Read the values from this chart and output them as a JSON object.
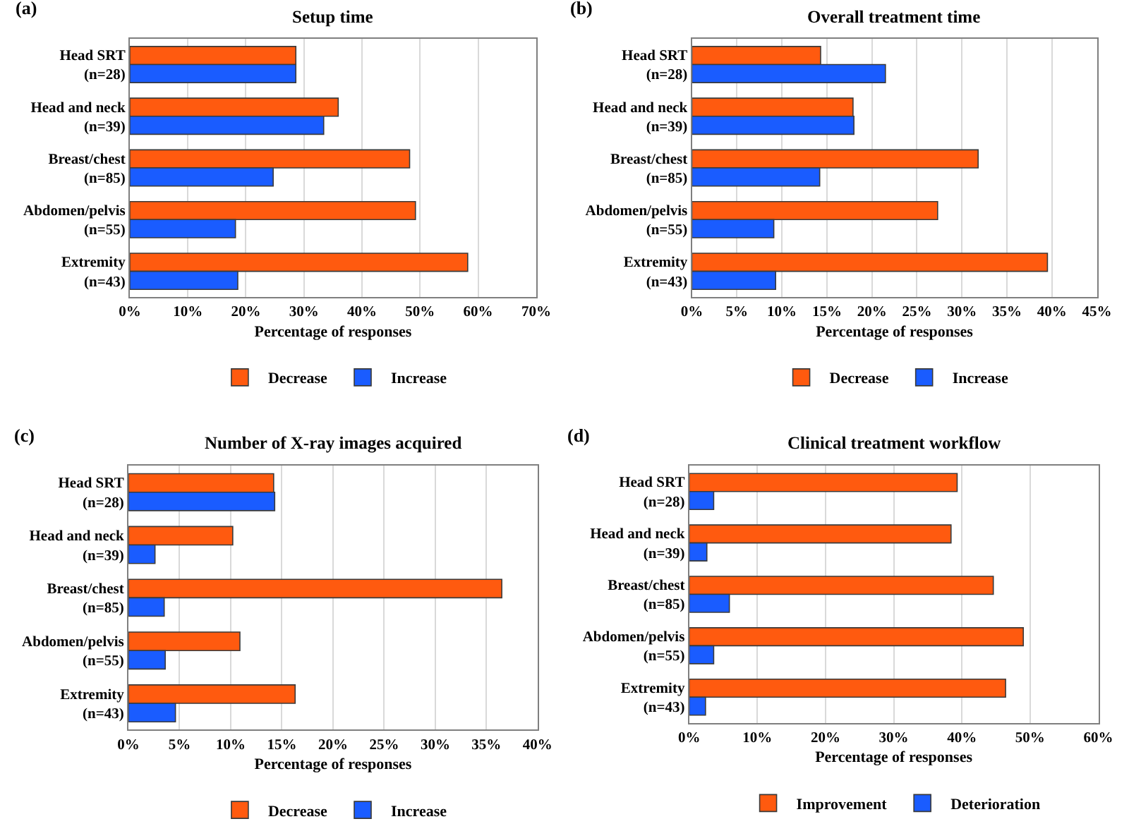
{
  "chart_data": [
    {
      "type": "bar",
      "orientation": "horizontal",
      "title": "Setup time",
      "annotations": [
        "(a)"
      ],
      "xlabel": "Percentage of responses",
      "categories": [
        "Head SRT\n(n=28)",
        "Head and neck\n(n=39)",
        "Breast/chest\n(n=85)",
        "Abdomen/pelvis\n(n=55)",
        "Extremity\n(n=43)"
      ],
      "series": [
        {
          "name": "Decrease",
          "color": "#ff5a0f",
          "values": [
            28.6,
            35.9,
            48.2,
            49.2,
            58.2
          ]
        },
        {
          "name": "Increase",
          "color": "#1a5cff",
          "values": [
            28.6,
            33.4,
            24.7,
            18.2,
            18.6
          ]
        }
      ],
      "xlim": [
        0,
        70
      ],
      "xticks": [
        {
          "value": 0,
          "label": "0%"
        },
        {
          "value": 10,
          "label": "10%"
        },
        {
          "value": 20,
          "label": "20%"
        },
        {
          "value": 30,
          "label": "30%"
        },
        {
          "value": 40,
          "label": "40%"
        },
        {
          "value": 50,
          "label": "50%"
        },
        {
          "value": 60,
          "label": "60%"
        },
        {
          "value": 70,
          "label": "70%"
        }
      ],
      "grid": "x",
      "legend": "bottom"
    },
    {
      "type": "bar",
      "orientation": "horizontal",
      "title": "Overall treatment time",
      "annotations": [
        "(b)"
      ],
      "xlabel": "Percentage of responses",
      "categories": [
        "Head SRT\n(n=28)",
        "Head and neck\n(n=39)",
        "Breast/chest\n(n=85)",
        "Abdomen/pelvis\n(n=55)",
        "Extremity\n(n=43)"
      ],
      "series": [
        {
          "name": "Decrease",
          "color": "#ff5a0f",
          "values": [
            14.3,
            17.9,
            31.8,
            27.3,
            39.5
          ]
        },
        {
          "name": "Increase",
          "color": "#1a5cff",
          "values": [
            21.5,
            18.0,
            14.2,
            9.1,
            9.3
          ]
        }
      ],
      "xlim": [
        0,
        45
      ],
      "xticks": [
        {
          "value": 0,
          "label": "0%"
        },
        {
          "value": 5,
          "label": "5%"
        },
        {
          "value": 10,
          "label": "10%"
        },
        {
          "value": 15,
          "label": "15%"
        },
        {
          "value": 20,
          "label": "20%"
        },
        {
          "value": 25,
          "label": "25%"
        },
        {
          "value": 30,
          "label": "30%"
        },
        {
          "value": 35,
          "label": "35%"
        },
        {
          "value": 40,
          "label": "40%"
        },
        {
          "value": 45,
          "label": "45%"
        }
      ],
      "grid": "x",
      "legend": "bottom"
    },
    {
      "type": "bar",
      "orientation": "horizontal",
      "title": "Number of X-ray images acquired",
      "annotations": [
        "(c)"
      ],
      "xlabel": "Percentage of responses",
      "categories": [
        "Head SRT\n(n=28)",
        "Head and neck\n(n=39)",
        "Breast/chest\n(n=85)",
        "Abdomen/pelvis\n(n=55)",
        "Extremity\n(n=43)"
      ],
      "series": [
        {
          "name": "Decrease",
          "color": "#ff5a0f",
          "values": [
            14.2,
            10.2,
            36.5,
            10.9,
            16.3
          ]
        },
        {
          "name": "Increase",
          "color": "#1a5cff",
          "values": [
            14.3,
            2.6,
            3.5,
            3.6,
            4.6
          ]
        }
      ],
      "xlim": [
        0,
        40
      ],
      "xticks": [
        {
          "value": 0,
          "label": "0%"
        },
        {
          "value": 5,
          "label": "5%"
        },
        {
          "value": 10,
          "label": "10%"
        },
        {
          "value": 15,
          "label": "15%"
        },
        {
          "value": 20,
          "label": "20%"
        },
        {
          "value": 25,
          "label": "25%"
        },
        {
          "value": 30,
          "label": "30%"
        },
        {
          "value": 35,
          "label": "35%"
        },
        {
          "value": 40,
          "label": "40%"
        }
      ],
      "grid": "x",
      "legend": "bottom"
    },
    {
      "type": "bar",
      "orientation": "horizontal",
      "title": "Clinical treatment workflow",
      "annotations": [
        "(d)"
      ],
      "xlabel": "Percentage of responses",
      "categories": [
        "Head SRT\n(n=28)",
        "Head and neck\n(n=39)",
        "Breast/chest\n(n=85)",
        "Abdomen/pelvis\n(n=55)",
        "Extremity\n(n=43)"
      ],
      "series": [
        {
          "name": "Improvement",
          "color": "#ff5a0f",
          "values": [
            39.3,
            38.4,
            44.6,
            49.0,
            46.4
          ]
        },
        {
          "name": "Deterioration",
          "color": "#1a5cff",
          "values": [
            3.6,
            2.6,
            5.9,
            3.6,
            2.4
          ]
        }
      ],
      "xlim": [
        0,
        60
      ],
      "xticks": [
        {
          "value": 0,
          "label": "0%"
        },
        {
          "value": 10,
          "label": "10%"
        },
        {
          "value": 20,
          "label": "20%"
        },
        {
          "value": 30,
          "label": "30%"
        },
        {
          "value": 40,
          "label": "40%"
        },
        {
          "value": 50,
          "label": "50%"
        },
        {
          "value": 60,
          "label": "60%"
        }
      ],
      "grid": "x",
      "legend": "bottom"
    }
  ]
}
